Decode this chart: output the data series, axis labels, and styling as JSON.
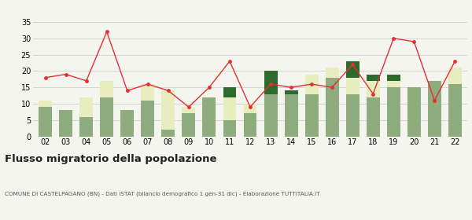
{
  "years": [
    "02",
    "03",
    "04",
    "05",
    "06",
    "07",
    "08",
    "09",
    "10",
    "11",
    "12",
    "13",
    "14",
    "15",
    "16",
    "17",
    "18",
    "19",
    "20",
    "21",
    "22"
  ],
  "iscritti_comuni": [
    9,
    8,
    6,
    12,
    8,
    11,
    2,
    7,
    12,
    5,
    7,
    13,
    13,
    13,
    18,
    13,
    12,
    15,
    15,
    17,
    16
  ],
  "iscritti_estero": [
    2,
    0,
    6,
    5,
    0,
    5,
    12,
    2,
    0,
    7,
    3,
    0,
    0,
    6,
    3,
    5,
    5,
    2,
    0,
    0,
    5
  ],
  "iscritti_altri": [
    0,
    0,
    0,
    0,
    0,
    0,
    0,
    0,
    0,
    3,
    0,
    7,
    1,
    0,
    0,
    5,
    2,
    2,
    0,
    0,
    0
  ],
  "cancellati": [
    18,
    19,
    17,
    32,
    14,
    16,
    14,
    9,
    15,
    23,
    9,
    16,
    15,
    16,
    15,
    22,
    13,
    30,
    29,
    11,
    23
  ],
  "color_comuni": "#8fac7e",
  "color_estero": "#e8edc0",
  "color_altri": "#2d6a2d",
  "color_cancellati": "#e03030",
  "bg_color": "#f5f5f0",
  "grid_color": "#d0d0d0",
  "ylim": [
    0,
    35
  ],
  "yticks": [
    0,
    5,
    10,
    15,
    20,
    25,
    30,
    35
  ],
  "title": "Flusso migratorio della popolazione",
  "subtitle": "COMUNE DI CASTELPAGANO (BN) - Dati ISTAT (bilancio demografico 1 gen-31 dic) - Elaborazione TUTTITALIA.IT"
}
